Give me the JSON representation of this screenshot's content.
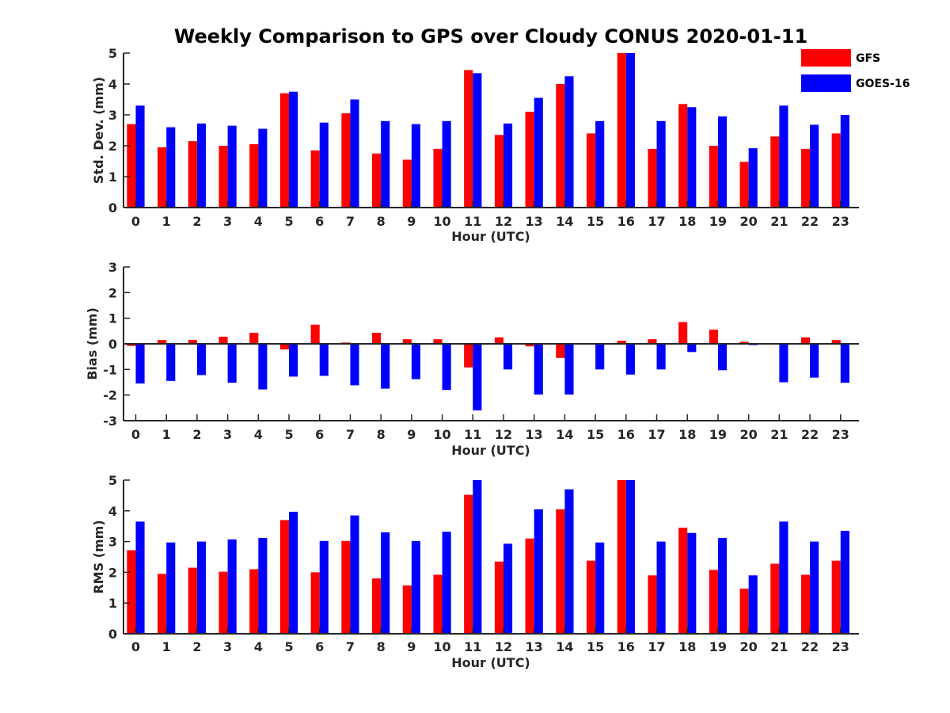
{
  "title": "Weekly Comparison to GPS over Cloudy CONUS 2020-01-11",
  "legend": {
    "position": "top-right",
    "items": [
      {
        "label": "GFS",
        "color": "#ff0000"
      },
      {
        "label": "GOES-16",
        "color": "#0000ff"
      }
    ]
  },
  "chart_data": [
    {
      "type": "bar",
      "xlabel": "Hour (UTC)",
      "ylabel": "Std. Dev. (mm)",
      "ylim": [
        0,
        5
      ],
      "yticks": [
        0,
        1,
        2,
        3,
        4,
        5
      ],
      "categories": [
        "0",
        "1",
        "2",
        "3",
        "4",
        "5",
        "6",
        "7",
        "8",
        "9",
        "10",
        "11",
        "12",
        "13",
        "14",
        "15",
        "16",
        "17",
        "18",
        "19",
        "20",
        "21",
        "22",
        "23"
      ],
      "series": [
        {
          "name": "GFS",
          "color": "#ff0000",
          "values": [
            2.7,
            1.95,
            2.15,
            2.0,
            2.05,
            3.7,
            1.85,
            3.05,
            1.75,
            1.55,
            1.9,
            4.45,
            2.35,
            3.1,
            4.0,
            2.4,
            5.0,
            1.9,
            3.35,
            2.0,
            1.48,
            2.3,
            1.9,
            2.4
          ]
        },
        {
          "name": "GOES-16",
          "color": "#0000ff",
          "values": [
            3.3,
            2.6,
            2.72,
            2.65,
            2.55,
            3.75,
            2.75,
            3.5,
            2.8,
            2.7,
            2.8,
            4.35,
            2.72,
            3.55,
            4.25,
            2.8,
            5.0,
            2.8,
            3.25,
            2.95,
            1.92,
            3.3,
            2.68,
            3.0
          ]
        }
      ]
    },
    {
      "type": "bar",
      "xlabel": "Hour (UTC)",
      "ylabel": "Bias (mm)",
      "ylim": [
        -3,
        3
      ],
      "yticks": [
        -3,
        -2,
        -1,
        0,
        1,
        2,
        3
      ],
      "categories": [
        "0",
        "1",
        "2",
        "3",
        "4",
        "5",
        "6",
        "7",
        "8",
        "9",
        "10",
        "11",
        "12",
        "13",
        "14",
        "15",
        "16",
        "17",
        "18",
        "19",
        "20",
        "21",
        "22",
        "23"
      ],
      "series": [
        {
          "name": "GFS",
          "color": "#ff0000",
          "values": [
            -0.08,
            0.15,
            0.15,
            0.28,
            0.43,
            -0.22,
            0.75,
            0.05,
            0.43,
            0.18,
            0.18,
            -0.92,
            0.25,
            -0.1,
            -0.55,
            0.0,
            0.12,
            0.18,
            0.85,
            0.55,
            0.08,
            0.0,
            0.25,
            0.15
          ]
        },
        {
          "name": "GOES-16",
          "color": "#0000ff",
          "values": [
            -1.55,
            -1.45,
            -1.22,
            -1.52,
            -1.78,
            -1.28,
            -1.25,
            -1.62,
            -1.75,
            -1.38,
            -1.8,
            -2.6,
            -1.0,
            -1.98,
            -1.98,
            -1.0,
            -1.2,
            -1.0,
            -0.32,
            -1.03,
            -0.05,
            -1.5,
            -1.32,
            -1.52
          ]
        }
      ]
    },
    {
      "type": "bar",
      "xlabel": "Hour (UTC)",
      "ylabel": "RMS (mm)",
      "ylim": [
        0,
        5
      ],
      "yticks": [
        0,
        1,
        2,
        3,
        4,
        5
      ],
      "categories": [
        "0",
        "1",
        "2",
        "3",
        "4",
        "5",
        "6",
        "7",
        "8",
        "9",
        "10",
        "11",
        "12",
        "13",
        "14",
        "15",
        "16",
        "17",
        "18",
        "19",
        "20",
        "21",
        "22",
        "23"
      ],
      "series": [
        {
          "name": "GFS",
          "color": "#ff0000",
          "values": [
            2.72,
            1.95,
            2.15,
            2.02,
            2.1,
            3.7,
            2.0,
            3.02,
            1.8,
            1.57,
            1.92,
            4.52,
            2.35,
            3.1,
            4.05,
            2.38,
            5.0,
            1.9,
            3.45,
            2.08,
            1.47,
            2.28,
            1.92,
            2.38
          ]
        },
        {
          "name": "GOES-16",
          "color": "#0000ff",
          "values": [
            3.65,
            2.97,
            3.0,
            3.07,
            3.12,
            3.97,
            3.02,
            3.85,
            3.3,
            3.02,
            3.32,
            5.0,
            2.93,
            4.05,
            4.7,
            2.97,
            5.0,
            3.0,
            3.28,
            3.12,
            1.9,
            3.65,
            3.0,
            3.35
          ]
        }
      ]
    }
  ]
}
